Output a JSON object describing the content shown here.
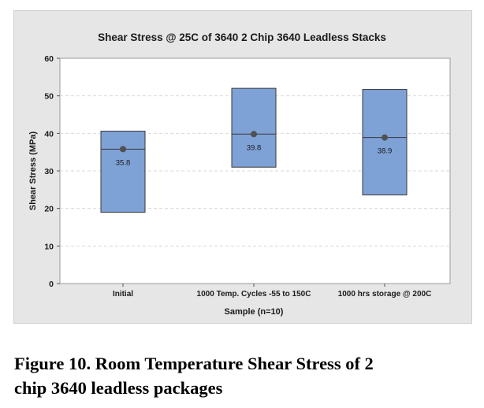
{
  "chart_data": {
    "type": "box",
    "title": "Shear Stress @ 25C of 3640 2 Chip 3640 Leadless Stacks",
    "xlabel": "Sample (n=10)",
    "ylabel": "Shear Stress (MPa)",
    "ylim": [
      0,
      60
    ],
    "yticks": [
      0,
      10,
      20,
      30,
      40,
      50,
      60
    ],
    "grid": true,
    "categories": [
      "Initial",
      "1000 Temp. Cycles -55 to 150C",
      "1000 hrs storage @ 200C"
    ],
    "boxes": [
      {
        "q1": 19,
        "median": 35.8,
        "q3": 40.6,
        "mean": 35.8,
        "mean_label": "35.8"
      },
      {
        "q1": 31,
        "median": 39.8,
        "q3": 52.0,
        "mean": 39.8,
        "mean_label": "39.8"
      },
      {
        "q1": 23.6,
        "median": 38.9,
        "q3": 51.7,
        "mean": 38.9,
        "mean_label": "38.9"
      }
    ],
    "colors": {
      "box_fill": "#7ea1d6",
      "box_stroke": "#3a3a3a",
      "mean_marker": "#505050",
      "grid": "#d9d9d9",
      "plot_bg": "#ffffff",
      "frame_bg": "#e6e6e6"
    }
  },
  "caption": {
    "line1": "Figure 10.  Room Temperature Shear Stress of 2",
    "line2": "chip 3640 leadless packages"
  }
}
